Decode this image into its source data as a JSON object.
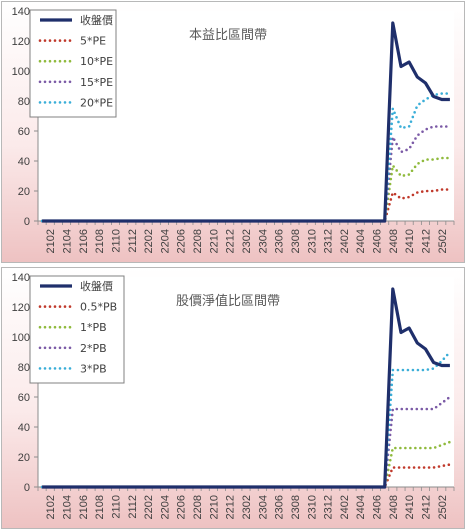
{
  "chart_data": [
    {
      "type": "line",
      "title": "本益比區間帶",
      "xlabel": "",
      "ylabel": "",
      "ylim": [
        0,
        140
      ],
      "yticks": [
        0,
        20,
        40,
        60,
        80,
        100,
        120,
        140
      ],
      "grid": false,
      "legend": "top-left",
      "x": [
        "2101",
        "2102",
        "2103",
        "2104",
        "2105",
        "2106",
        "2107",
        "2108",
        "2109",
        "2110",
        "2111",
        "2112",
        "2201",
        "2202",
        "2203",
        "2204",
        "2205",
        "2206",
        "2207",
        "2208",
        "2209",
        "2210",
        "2211",
        "2212",
        "2301",
        "2302",
        "2303",
        "2304",
        "2305",
        "2306",
        "2307",
        "2308",
        "2309",
        "2310",
        "2311",
        "2312",
        "2401",
        "2402",
        "2403",
        "2404",
        "2405",
        "2406",
        "2407",
        "2408",
        "2409",
        "2410",
        "2411",
        "2412",
        "2501",
        "2502",
        "2503"
      ],
      "x_tick_labels": [
        "2102",
        "2104",
        "2106",
        "2108",
        "2110",
        "2112",
        "2202",
        "2204",
        "2206",
        "2208",
        "2210",
        "2212",
        "2302",
        "2304",
        "2306",
        "2308",
        "2310",
        "2312",
        "2402",
        "2404",
        "2406",
        "2408",
        "2410",
        "2412",
        "2502"
      ],
      "series": [
        {
          "name": "收盤價",
          "color": "#1f2f6b",
          "style": "solid",
          "values": [
            0,
            0,
            0,
            0,
            0,
            0,
            0,
            0,
            0,
            0,
            0,
            0,
            0,
            0,
            0,
            0,
            0,
            0,
            0,
            0,
            0,
            0,
            0,
            0,
            0,
            0,
            0,
            0,
            0,
            0,
            0,
            0,
            0,
            0,
            0,
            0,
            0,
            0,
            0,
            0,
            0,
            0,
            0,
            132,
            103,
            106,
            96,
            92,
            83,
            81,
            81
          ]
        },
        {
          "name": "5*PE",
          "color": "#c0392b",
          "style": "dotted",
          "values": [
            0,
            0,
            0,
            0,
            0,
            0,
            0,
            0,
            0,
            0,
            0,
            0,
            0,
            0,
            0,
            0,
            0,
            0,
            0,
            0,
            0,
            0,
            0,
            0,
            0,
            0,
            0,
            0,
            0,
            0,
            0,
            0,
            0,
            0,
            0,
            0,
            0,
            0,
            0,
            0,
            0,
            0,
            0,
            19,
            15,
            16,
            19,
            20,
            20,
            21,
            21
          ]
        },
        {
          "name": "10*PE",
          "color": "#8fba3c",
          "style": "dotted",
          "values": [
            0,
            0,
            0,
            0,
            0,
            0,
            0,
            0,
            0,
            0,
            0,
            0,
            0,
            0,
            0,
            0,
            0,
            0,
            0,
            0,
            0,
            0,
            0,
            0,
            0,
            0,
            0,
            0,
            0,
            0,
            0,
            0,
            0,
            0,
            0,
            0,
            0,
            0,
            0,
            0,
            0,
            0,
            0,
            37,
            30,
            31,
            38,
            41,
            41,
            42,
            42
          ]
        },
        {
          "name": "15*PE",
          "color": "#7b5aa6",
          "style": "dotted",
          "values": [
            0,
            0,
            0,
            0,
            0,
            0,
            0,
            0,
            0,
            0,
            0,
            0,
            0,
            0,
            0,
            0,
            0,
            0,
            0,
            0,
            0,
            0,
            0,
            0,
            0,
            0,
            0,
            0,
            0,
            0,
            0,
            0,
            0,
            0,
            0,
            0,
            0,
            0,
            0,
            0,
            0,
            0,
            0,
            56,
            46,
            48,
            57,
            61,
            63,
            63,
            63
          ]
        },
        {
          "name": "20*PE",
          "color": "#3aaed8",
          "style": "dotted",
          "values": [
            0,
            0,
            0,
            0,
            0,
            0,
            0,
            0,
            0,
            0,
            0,
            0,
            0,
            0,
            0,
            0,
            0,
            0,
            0,
            0,
            0,
            0,
            0,
            0,
            0,
            0,
            0,
            0,
            0,
            0,
            0,
            0,
            0,
            0,
            0,
            0,
            0,
            0,
            0,
            0,
            0,
            0,
            0,
            75,
            62,
            63,
            77,
            81,
            84,
            85,
            85
          ]
        }
      ]
    },
    {
      "type": "line",
      "title": "股價淨值比區間帶",
      "xlabel": "",
      "ylabel": "",
      "ylim": [
        0,
        140
      ],
      "yticks": [
        0,
        20,
        40,
        60,
        80,
        100,
        120,
        140
      ],
      "grid": false,
      "legend": "top-left",
      "x": [
        "2101",
        "2102",
        "2103",
        "2104",
        "2105",
        "2106",
        "2107",
        "2108",
        "2109",
        "2110",
        "2111",
        "2112",
        "2201",
        "2202",
        "2203",
        "2204",
        "2205",
        "2206",
        "2207",
        "2208",
        "2209",
        "2210",
        "2211",
        "2212",
        "2301",
        "2302",
        "2303",
        "2304",
        "2305",
        "2306",
        "2307",
        "2308",
        "2309",
        "2310",
        "2311",
        "2312",
        "2401",
        "2402",
        "2403",
        "2404",
        "2405",
        "2406",
        "2407",
        "2408",
        "2409",
        "2410",
        "2411",
        "2412",
        "2501",
        "2502",
        "2503"
      ],
      "x_tick_labels": [
        "2102",
        "2104",
        "2106",
        "2108",
        "2110",
        "2112",
        "2202",
        "2204",
        "2206",
        "2208",
        "2210",
        "2212",
        "2302",
        "2304",
        "2306",
        "2308",
        "2310",
        "2312",
        "2402",
        "2404",
        "2406",
        "2408",
        "2410",
        "2412",
        "2502"
      ],
      "series": [
        {
          "name": "收盤價",
          "color": "#1f2f6b",
          "style": "solid",
          "values": [
            0,
            0,
            0,
            0,
            0,
            0,
            0,
            0,
            0,
            0,
            0,
            0,
            0,
            0,
            0,
            0,
            0,
            0,
            0,
            0,
            0,
            0,
            0,
            0,
            0,
            0,
            0,
            0,
            0,
            0,
            0,
            0,
            0,
            0,
            0,
            0,
            0,
            0,
            0,
            0,
            0,
            0,
            0,
            132,
            103,
            106,
            96,
            92,
            83,
            81,
            81
          ]
        },
        {
          "name": "0.5*PB",
          "color": "#c0392b",
          "style": "dotted",
          "values": [
            0,
            0,
            0,
            0,
            0,
            0,
            0,
            0,
            0,
            0,
            0,
            0,
            0,
            0,
            0,
            0,
            0,
            0,
            0,
            0,
            0,
            0,
            0,
            0,
            0,
            0,
            0,
            0,
            0,
            0,
            0,
            0,
            0,
            0,
            0,
            0,
            0,
            0,
            0,
            0,
            0,
            0,
            0,
            13,
            13,
            13,
            13,
            13,
            13,
            14,
            15
          ]
        },
        {
          "name": "1*PB",
          "color": "#8fba3c",
          "style": "dotted",
          "values": [
            0,
            0,
            0,
            0,
            0,
            0,
            0,
            0,
            0,
            0,
            0,
            0,
            0,
            0,
            0,
            0,
            0,
            0,
            0,
            0,
            0,
            0,
            0,
            0,
            0,
            0,
            0,
            0,
            0,
            0,
            0,
            0,
            0,
            0,
            0,
            0,
            0,
            0,
            0,
            0,
            0,
            0,
            0,
            26,
            26,
            26,
            26,
            26,
            26,
            28,
            30
          ]
        },
        {
          "name": "2*PB",
          "color": "#7b5aa6",
          "style": "dotted",
          "values": [
            0,
            0,
            0,
            0,
            0,
            0,
            0,
            0,
            0,
            0,
            0,
            0,
            0,
            0,
            0,
            0,
            0,
            0,
            0,
            0,
            0,
            0,
            0,
            0,
            0,
            0,
            0,
            0,
            0,
            0,
            0,
            0,
            0,
            0,
            0,
            0,
            0,
            0,
            0,
            0,
            0,
            0,
            0,
            52,
            52,
            52,
            52,
            52,
            52,
            56,
            60
          ]
        },
        {
          "name": "3*PB",
          "color": "#3aaed8",
          "style": "dotted",
          "values": [
            0,
            0,
            0,
            0,
            0,
            0,
            0,
            0,
            0,
            0,
            0,
            0,
            0,
            0,
            0,
            0,
            0,
            0,
            0,
            0,
            0,
            0,
            0,
            0,
            0,
            0,
            0,
            0,
            0,
            0,
            0,
            0,
            0,
            0,
            0,
            0,
            0,
            0,
            0,
            0,
            0,
            0,
            0,
            78,
            78,
            78,
            78,
            78,
            79,
            84,
            90
          ]
        }
      ]
    }
  ]
}
